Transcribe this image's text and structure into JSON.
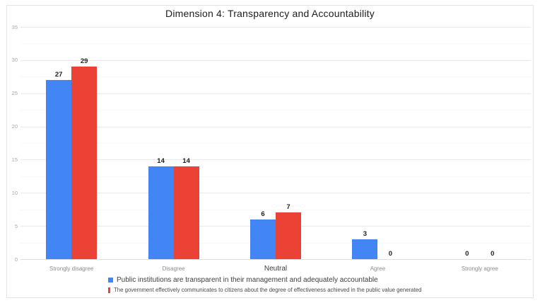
{
  "chart_data": {
    "type": "bar",
    "title": "Dimension 4: Transparency and Accountability",
    "categories": [
      "Strongly disagree",
      "Disagree",
      "Neutral",
      "Agree",
      "Strongly agree"
    ],
    "emphasized_category": "Neutral",
    "series": [
      {
        "name": "Public institutions are transparent in their management and adequately accountable",
        "color": "#4285F4",
        "values": [
          27,
          14,
          6,
          3,
          0
        ]
      },
      {
        "name": "The government effectively communicates to citizens about the degree of effectiveness achieved in the public value generated",
        "color": "#EA4335",
        "values": [
          29,
          14,
          7,
          0,
          0
        ]
      }
    ],
    "xlabel": "",
    "ylabel": "",
    "ylim": [
      0,
      35
    ],
    "yticks": [
      0,
      5,
      10,
      15,
      20,
      25,
      30,
      35
    ],
    "grid": true,
    "minor_grid": true,
    "value_labels": true,
    "legend_position": "bottom"
  }
}
